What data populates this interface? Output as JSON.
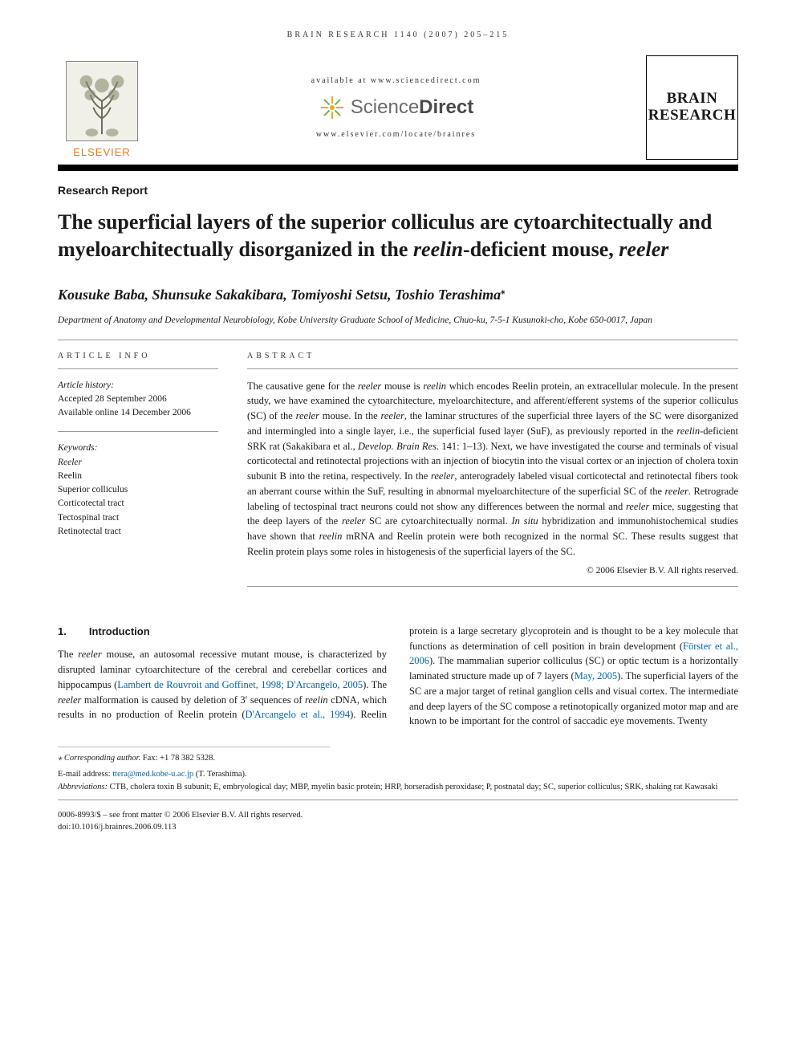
{
  "running_head": "BRAIN RESEARCH 1140 (2007) 205–215",
  "header": {
    "elsevier": "ELSEVIER",
    "available_at": "available at www.sciencedirect.com",
    "sciencedirect": "ScienceDirect",
    "journal_url": "www.elsevier.com/locate/brainres",
    "journal_logo_line1": "BRAIN",
    "journal_logo_line2": "RESEARCH"
  },
  "article_type": "Research Report",
  "title_parts": {
    "pre": "The superficial layers of the superior colliculus are cytoarchitectually and myeloarchitectually disorganized in the ",
    "em1": "reelin",
    "mid": "-deficient mouse, ",
    "em2": "reeler"
  },
  "authors": "Kousuke Baba, Shunsuke Sakakibara, Tomiyoshi Setsu, Toshio Terashima",
  "author_marker": "⁎",
  "affiliation": "Department of Anatomy and Developmental Neurobiology, Kobe University Graduate School of Medicine, Chuo-ku, 7-5-1 Kusunoki-cho, Kobe 650-0017, Japan",
  "meta": {
    "info_head": "ARTICLE INFO",
    "history_label": "Article history:",
    "accepted": "Accepted 28 September 2006",
    "online": "Available online 14 December 2006",
    "keywords_label": "Keywords:",
    "keywords": [
      "Reeler",
      "Reelin",
      "Superior colliculus",
      "Corticotectal tract",
      "Tectospinal tract",
      "Retinotectal tract"
    ]
  },
  "abstract": {
    "head": "ABSTRACT",
    "text_html": "The causative gene for the <i>reeler</i> mouse is <i>reelin</i> which encodes Reelin protein, an extracellular molecule. In the present study, we have examined the cytoarchitecture, myeloarchitecture, and afferent/efferent systems of the superior colliculus (SC) of the <i>reeler</i> mouse. In the <i>reeler</i>, the laminar structures of the superficial three layers of the SC were disorganized and intermingled into a single layer, i.e., the superficial fused layer (SuF), as previously reported in the <i>reelin</i>-deficient SRK rat (Sakakibara et al., <i>Develop. Brain Res.</i> 141: 1–13). Next, we have investigated the course and terminals of visual corticotectal and retinotectal projections with an injection of biocytin into the visual cortex or an injection of cholera toxin subunit B into the retina, respectively. In the <i>reeler</i>, anterogradely labeled visual corticotectal and retinotectal fibers took an aberrant course within the SuF, resulting in abnormal myeloarchitecture of the superficial SC of the <i>reeler</i>. Retrograde labeling of tectospinal tract neurons could not show any differences between the normal and <i>reeler</i> mice, suggesting that the deep layers of the <i>reeler</i> SC are cytoarchitectually normal. <i>In situ</i> hybridization and immunohistochemical studies have shown that <i>reelin</i> mRNA and Reelin protein were both recognized in the normal SC. These results suggest that Reelin protein plays some roles in histogenesis of the superficial layers of the SC.",
    "copyright": "© 2006 Elsevier B.V. All rights reserved."
  },
  "section": {
    "num": "1.",
    "title": "Introduction",
    "body_html": "The <i>reeler</i> mouse, an autosomal recessive mutant mouse, is characterized by disrupted laminar cytoarchitecture of the cerebral and cerebellar cortices and hippocampus (<span class=\"ref-link\">Lambert de Rouvroit and Goffinet, 1998; D'Arcangelo, 2005</span>). The <i>reeler</i> malformation is caused by deletion of 3′ sequences of <i>reelin</i> cDNA, which results in no production of Reelin protein (<span class=\"ref-link\">D'Arcangelo et al., 1994</span>). Reelin protein is a large secretary glycoprotein and is thought to be a key molecule that functions as determination of cell position in brain development (<span class=\"ref-link\">Förster et al., 2006</span>). The mammalian superior colliculus (SC) or optic tectum is a horizontally laminated structure made up of 7 layers (<span class=\"ref-link\">May, 2005</span>). The superficial layers of the SC are a major target of retinal ganglion cells and visual cortex. The intermediate and deep layers of the SC compose a retinotopically organized motor map and are known to be important for the control of saccadic eye movements. Twenty"
  },
  "footnotes": {
    "corresponding_label": "⁎ Corresponding author.",
    "corresponding_text": " Fax: +1 78 382 5328.",
    "email_label": "E-mail address: ",
    "email": "ttera@med.kobe-u.ac.jp",
    "email_suffix": " (T. Terashima).",
    "abbrev_label": "Abbreviations:",
    "abbrev_text": " CTB, cholera toxin B subunit; E, embryological day; MBP, myelin basic protein; HRP, horseradish peroxidase; P, postnatal day; SC, superior colliculus; SRK, shaking rat Kawasaki"
  },
  "bottom": {
    "line1": "0006-8993/$ – see front matter © 2006 Elsevier B.V. All rights reserved.",
    "line2": "doi:10.1016/j.brainres.2006.09.113"
  },
  "colors": {
    "elsevier_orange": "#e67817",
    "sd_orange": "#f5a623",
    "sd_green": "#7cb342",
    "link_blue": "#0066aa"
  }
}
